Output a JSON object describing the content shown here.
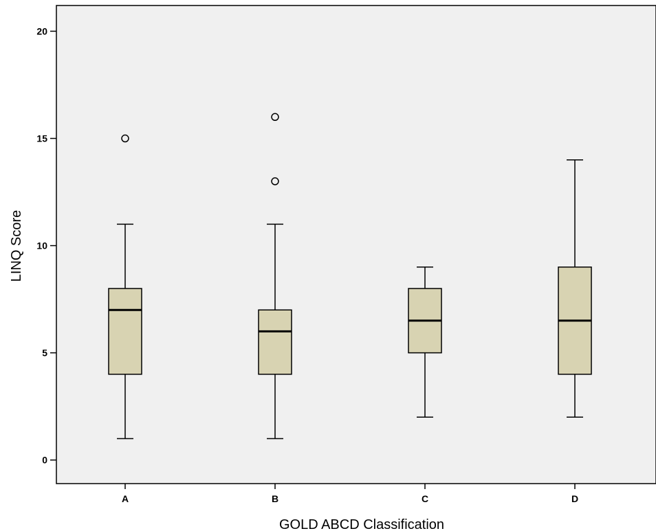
{
  "chart_data": {
    "type": "box",
    "xlabel": "GOLD ABCD Classification",
    "ylabel": "LINQ Score",
    "ylim": [
      -1.1,
      21.2
    ],
    "yticks": [
      0,
      5,
      10,
      15,
      20
    ],
    "grid": false,
    "colors": {
      "plot_background": "#f0f0f0",
      "box_fill": "#d8d3b2",
      "stroke": "#000000"
    },
    "categories": [
      "A",
      "B",
      "C",
      "D"
    ],
    "boxes": [
      {
        "category": "A",
        "whisker_low": 1,
        "q1": 4,
        "median": 7,
        "q3": 8,
        "whisker_high": 11,
        "outliers": [
          15
        ]
      },
      {
        "category": "B",
        "whisker_low": 1,
        "q1": 4,
        "median": 6,
        "q3": 7,
        "whisker_high": 11,
        "outliers": [
          13,
          16
        ]
      },
      {
        "category": "C",
        "whisker_low": 2,
        "q1": 5,
        "median": 6.5,
        "q3": 8,
        "whisker_high": 9,
        "outliers": []
      },
      {
        "category": "D",
        "whisker_low": 2,
        "q1": 4,
        "median": 6.5,
        "q3": 9,
        "whisker_high": 14,
        "outliers": []
      }
    ]
  }
}
